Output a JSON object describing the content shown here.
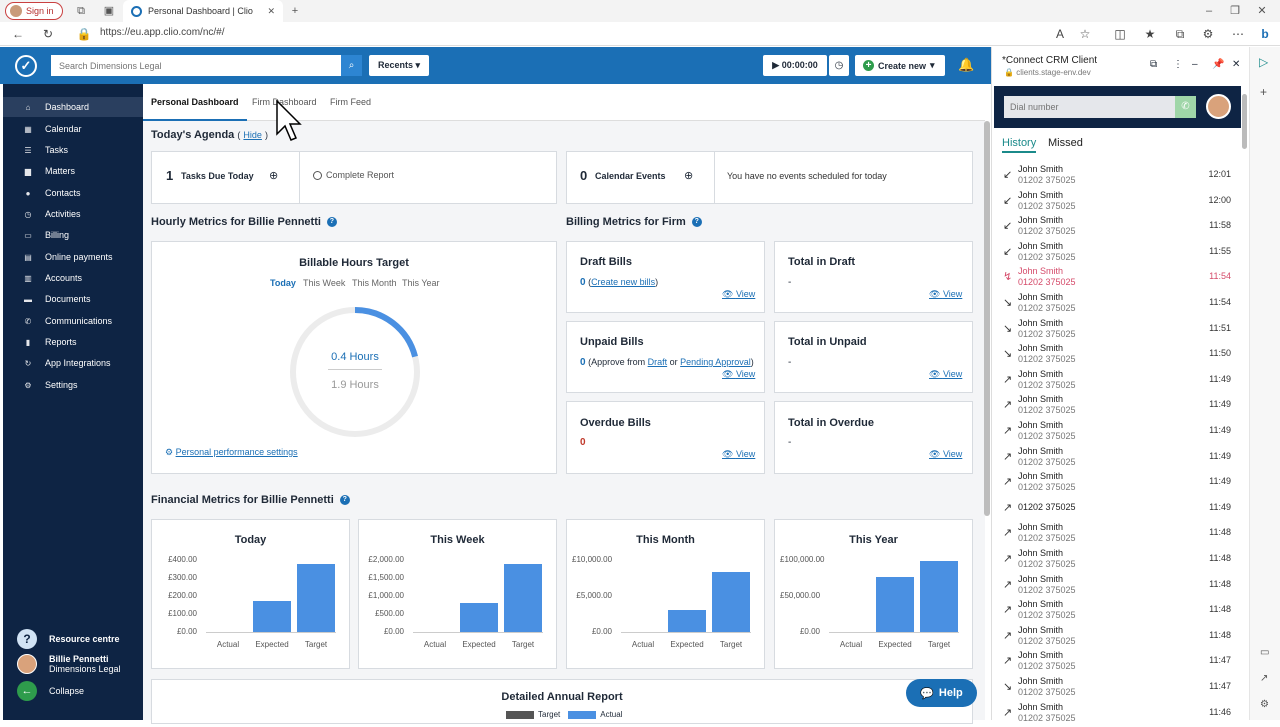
{
  "browser": {
    "signin": "Sign in",
    "tab_title": "Personal Dashboard | Clio",
    "url": "https://eu.app.clio.com/nc/#/"
  },
  "header": {
    "search_placeholder": "Search Dimensions Legal",
    "recents": "Recents",
    "timer": "00:00:00",
    "create_new": "Create new"
  },
  "sidebar": {
    "items": [
      "Dashboard",
      "Calendar",
      "Tasks",
      "Matters",
      "Contacts",
      "Activities",
      "Billing",
      "Online payments",
      "Accounts",
      "Documents",
      "Communications",
      "Reports",
      "App Integrations",
      "Settings"
    ],
    "resource": "Resource centre",
    "user_name": "Billie Pennetti",
    "user_org": "Dimensions Legal",
    "collapse": "Collapse"
  },
  "tabs": [
    "Personal Dashboard",
    "Firm Dashboard",
    "Firm Feed"
  ],
  "agenda": {
    "title": "Today's Agenda",
    "hide": "Hide",
    "tasks_count": "1",
    "tasks_label": "Tasks Due Today",
    "complete_report": "Complete Report",
    "events_count": "0",
    "events_label": "Calendar Events",
    "no_events": "You have no events scheduled for today"
  },
  "hourly": {
    "title": "Hourly Metrics for Billie Pennetti",
    "card_title": "Billable Hours Target",
    "periods": [
      "Today",
      "This Week",
      "This Month",
      "This Year"
    ],
    "actual": "0.4 Hours",
    "target": "1.9 Hours",
    "settings_link": "Personal performance settings",
    "progress_fraction": 0.21
  },
  "billing": {
    "title": "Billing Metrics for Firm",
    "view": "View",
    "draft": {
      "title": "Draft Bills",
      "count": "0",
      "link": "Create new bills"
    },
    "total_draft": {
      "title": "Total in Draft",
      "value": "-"
    },
    "unpaid": {
      "title": "Unpaid Bills",
      "count": "0",
      "text": "Approve from",
      "draft_link": "Draft",
      "or": "or",
      "pending_link": "Pending Approval"
    },
    "total_unpaid": {
      "title": "Total in Unpaid",
      "value": "-"
    },
    "overdue": {
      "title": "Overdue Bills",
      "count": "0"
    },
    "total_overdue": {
      "title": "Total in Overdue",
      "value": "-"
    }
  },
  "financial": {
    "title": "Financial Metrics for Billie Pennetti"
  },
  "chart_data": [
    {
      "type": "bar",
      "title": "Today",
      "categories": [
        "Actual",
        "Expected",
        "Target"
      ],
      "values": [
        0,
        170,
        380
      ],
      "ylim": [
        0,
        400
      ],
      "yticks": [
        "£400.00",
        "£300.00",
        "£200.00",
        "£100.00",
        "£0.00"
      ]
    },
    {
      "type": "bar",
      "title": "This Week",
      "categories": [
        "Actual",
        "Expected",
        "Target"
      ],
      "values": [
        0,
        800,
        1900
      ],
      "ylim": [
        0,
        2000
      ],
      "yticks": [
        "£2,000.00",
        "£1,500.00",
        "£1,000.00",
        "£500.00",
        "£0.00"
      ]
    },
    {
      "type": "bar",
      "title": "This Month",
      "categories": [
        "Actual",
        "Expected",
        "Target"
      ],
      "values": [
        0,
        3000,
        8300
      ],
      "ylim": [
        0,
        10000
      ],
      "yticks": [
        "£10,000.00",
        "£5,000.00",
        "£0.00"
      ]
    },
    {
      "type": "bar",
      "title": "This Year",
      "categories": [
        "Actual",
        "Expected",
        "Target"
      ],
      "values": [
        0,
        77000,
        98000
      ],
      "ylim": [
        0,
        100000
      ],
      "yticks": [
        "£100,000.00",
        "£50,000.00",
        "£0.00"
      ]
    }
  ],
  "annual": {
    "title": "Detailed Annual Report",
    "legend_target": "Target",
    "legend_actual": "Actual"
  },
  "help": "Help",
  "crm": {
    "title": "*Connect CRM Client",
    "subtitle": "clients.stage-env.dev",
    "dial_placeholder": "Dial number",
    "tab_history": "History",
    "tab_missed": "Missed",
    "calls": [
      {
        "name": "John Smith",
        "phone": "01202 375025",
        "time": "12:01",
        "dir": "in"
      },
      {
        "name": "John Smith",
        "phone": "01202 375025",
        "time": "12:00",
        "dir": "in"
      },
      {
        "name": "John Smith",
        "phone": "01202 375025",
        "time": "11:58",
        "dir": "in"
      },
      {
        "name": "John Smith",
        "phone": "01202 375025",
        "time": "11:55",
        "dir": "in"
      },
      {
        "name": "John Smith",
        "phone": "01202 375025",
        "time": "11:54",
        "dir": "missed"
      },
      {
        "name": "John Smith",
        "phone": "01202 375025",
        "time": "11:54",
        "dir": "declined"
      },
      {
        "name": "John Smith",
        "phone": "01202 375025",
        "time": "11:51",
        "dir": "declined"
      },
      {
        "name": "John Smith",
        "phone": "01202 375025",
        "time": "11:50",
        "dir": "declined"
      },
      {
        "name": "John Smith",
        "phone": "01202 375025",
        "time": "11:49",
        "dir": "out"
      },
      {
        "name": "John Smith",
        "phone": "01202 375025",
        "time": "11:49",
        "dir": "out"
      },
      {
        "name": "John Smith",
        "phone": "01202 375025",
        "time": "11:49",
        "dir": "out"
      },
      {
        "name": "John Smith",
        "phone": "01202 375025",
        "time": "11:49",
        "dir": "out"
      },
      {
        "name": "John Smith",
        "phone": "01202 375025",
        "time": "11:49",
        "dir": "out"
      },
      {
        "name": "",
        "phone": "01202 375025",
        "time": "11:49",
        "dir": "out"
      },
      {
        "name": "John Smith",
        "phone": "01202 375025",
        "time": "11:48",
        "dir": "out"
      },
      {
        "name": "John Smith",
        "phone": "01202 375025",
        "time": "11:48",
        "dir": "out"
      },
      {
        "name": "John Smith",
        "phone": "01202 375025",
        "time": "11:48",
        "dir": "out"
      },
      {
        "name": "John Smith",
        "phone": "01202 375025",
        "time": "11:48",
        "dir": "out"
      },
      {
        "name": "John Smith",
        "phone": "01202 375025",
        "time": "11:48",
        "dir": "out"
      },
      {
        "name": "John Smith",
        "phone": "01202 375025",
        "time": "11:47",
        "dir": "out"
      },
      {
        "name": "John Smith",
        "phone": "01202 375025",
        "time": "11:47",
        "dir": "declined"
      },
      {
        "name": "John Smith",
        "phone": "01202 375025",
        "time": "11:46",
        "dir": "out"
      }
    ]
  }
}
